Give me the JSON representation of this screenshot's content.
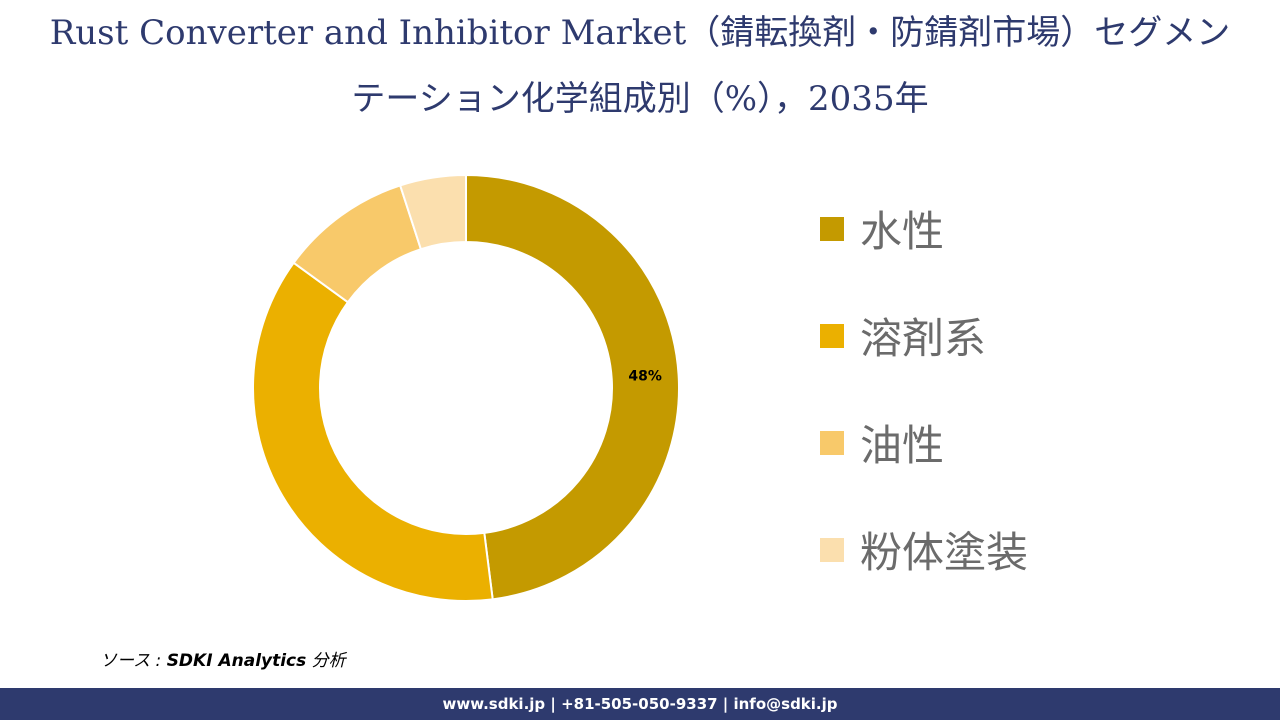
{
  "title": {
    "line1": "Rust Converter and Inhibitor Market（錆転換剤・防錆剤市場）セグメン",
    "line2": "テーション化学組成別（%），2035年"
  },
  "source": {
    "prefix": "ソース : ",
    "name": "SDKI Analytics",
    "suffix": " 分析"
  },
  "footer": {
    "text": "www.sdki.jp | +81-505-050-9337 | info@sdki.jp"
  },
  "colors": {
    "title": "#2e3a6e",
    "footer_bg": "#2e3a6e",
    "legend_text": "#6b6b6b"
  },
  "chart_data": {
    "type": "pie",
    "donut": true,
    "start_angle_deg": 0,
    "direction": "clockwise",
    "legend_position": "right",
    "categories": [
      "水性",
      "溶剤系",
      "油性",
      "粉体塗装"
    ],
    "values": [
      48,
      37,
      10,
      5
    ],
    "colors": [
      "#c49a00",
      "#ebb000",
      "#f8c96a",
      "#fbdfae"
    ],
    "data_labels": [
      "48%",
      "",
      "",
      ""
    ],
    "unit": "%"
  }
}
